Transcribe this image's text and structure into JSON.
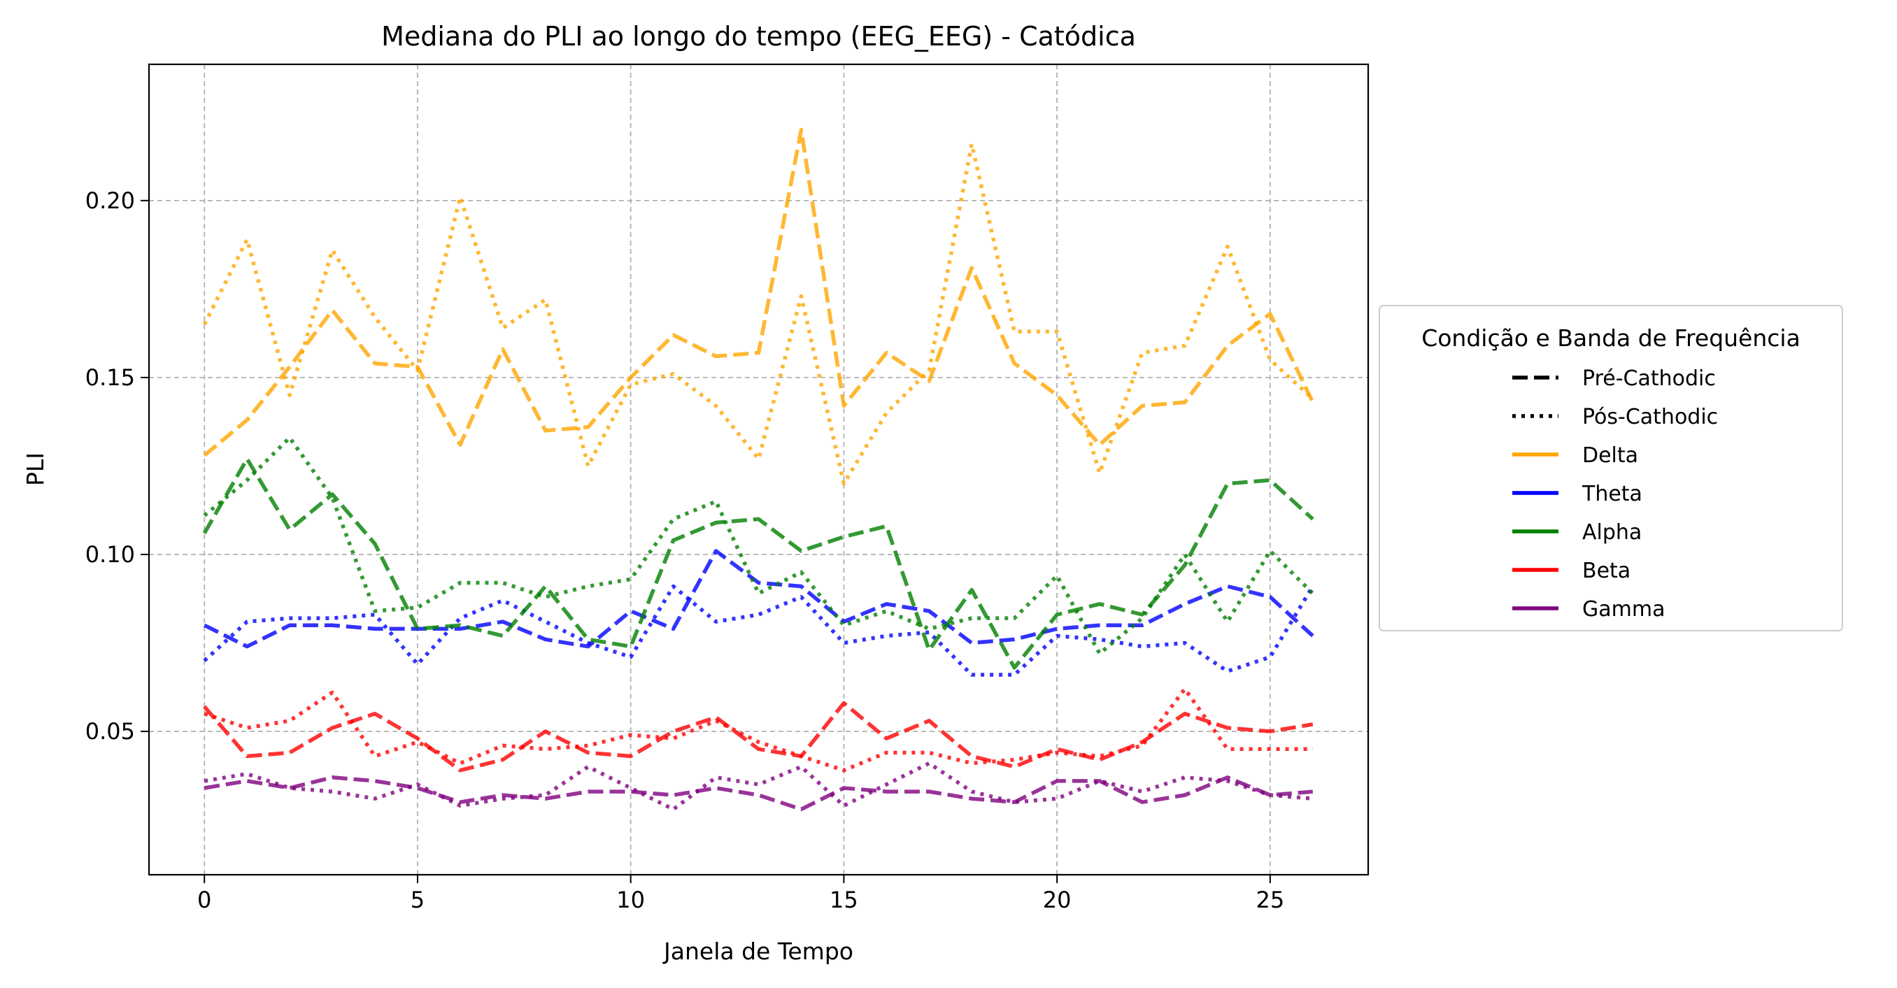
{
  "chart_data": {
    "type": "line",
    "title": "Mediana do PLI ao longo do tempo (EEG_EEG) - Catódica",
    "xlabel": "Janela de Tempo",
    "ylabel": "PLI",
    "xlim": [
      -1.3,
      27.3
    ],
    "ylim": [
      0.0095,
      0.2385
    ],
    "x_ticks": [
      0,
      5,
      10,
      15,
      20,
      25
    ],
    "x_tick_labels": [
      "0",
      "5",
      "10",
      "15",
      "20",
      "25"
    ],
    "y_ticks": [
      0.05,
      0.1,
      0.15,
      0.2
    ],
    "y_tick_labels": [
      "0.05",
      "0.10",
      "0.15",
      "0.20"
    ],
    "grid": true,
    "legend_placement": "outside-right",
    "legend": {
      "title": "Condição e Banda de Frequência",
      "entries": [
        {
          "label": "Pré-Cathodic",
          "color": "#000000",
          "style": "dashed"
        },
        {
          "label": "Pós-Cathodic",
          "color": "#000000",
          "style": "dotted"
        },
        {
          "label": "Delta",
          "color": "#ffa500",
          "style": "solid"
        },
        {
          "label": "Theta",
          "color": "#0000ff",
          "style": "solid"
        },
        {
          "label": "Alpha",
          "color": "#008000",
          "style": "solid"
        },
        {
          "label": "Beta",
          "color": "#ff0000",
          "style": "solid"
        },
        {
          "label": "Gamma",
          "color": "#800080",
          "style": "solid"
        }
      ]
    },
    "x": [
      0,
      1,
      2,
      3,
      4,
      5,
      6,
      7,
      8,
      9,
      10,
      11,
      12,
      13,
      14,
      15,
      16,
      17,
      18,
      19,
      20,
      21,
      22,
      23,
      24,
      25,
      26
    ],
    "series": [
      {
        "band": "Delta",
        "condition": "Pré-Cathodic",
        "color": "#ffa500",
        "style": "dashed",
        "values": [
          0.128,
          0.138,
          0.153,
          0.169,
          0.154,
          0.153,
          0.131,
          0.158,
          0.135,
          0.136,
          0.15,
          0.162,
          0.156,
          0.157,
          0.22,
          0.142,
          0.157,
          0.149,
          0.181,
          0.154,
          0.145,
          0.131,
          0.142,
          0.143,
          0.159,
          0.168,
          0.143
        ]
      },
      {
        "band": "Delta",
        "condition": "Pós-Cathodic",
        "color": "#ffa500",
        "style": "dotted",
        "values": [
          0.165,
          0.189,
          0.145,
          0.186,
          0.167,
          0.152,
          0.201,
          0.164,
          0.172,
          0.125,
          0.148,
          0.151,
          0.142,
          0.127,
          0.173,
          0.12,
          0.14,
          0.152,
          0.216,
          0.163,
          0.163,
          0.123,
          0.157,
          0.159,
          0.187,
          0.155,
          0.144
        ]
      },
      {
        "band": "Theta",
        "condition": "Pré-Cathodic",
        "color": "#0000ff",
        "style": "dashed",
        "values": [
          0.08,
          0.074,
          0.08,
          0.08,
          0.079,
          0.079,
          0.079,
          0.081,
          0.076,
          0.074,
          0.084,
          0.079,
          0.101,
          0.092,
          0.091,
          0.081,
          0.086,
          0.084,
          0.075,
          0.076,
          0.079,
          0.08,
          0.08,
          0.086,
          0.091,
          0.088,
          0.077
        ]
      },
      {
        "band": "Theta",
        "condition": "Pós-Cathodic",
        "color": "#0000ff",
        "style": "dotted",
        "values": [
          0.07,
          0.081,
          0.082,
          0.082,
          0.083,
          0.069,
          0.082,
          0.087,
          0.081,
          0.075,
          0.071,
          0.091,
          0.081,
          0.083,
          0.088,
          0.075,
          0.077,
          0.078,
          0.066,
          0.066,
          0.077,
          0.076,
          0.074,
          0.075,
          0.067,
          0.071,
          0.091
        ]
      },
      {
        "band": "Alpha",
        "condition": "Pré-Cathodic",
        "color": "#008000",
        "style": "dashed",
        "values": [
          0.106,
          0.127,
          0.107,
          0.117,
          0.103,
          0.079,
          0.08,
          0.077,
          0.091,
          0.076,
          0.074,
          0.104,
          0.109,
          0.11,
          0.101,
          0.105,
          0.108,
          0.073,
          0.09,
          0.068,
          0.083,
          0.086,
          0.083,
          0.097,
          0.12,
          0.121,
          0.11
        ]
      },
      {
        "band": "Alpha",
        "condition": "Pós-Cathodic",
        "color": "#008000",
        "style": "dotted",
        "values": [
          0.111,
          0.121,
          0.133,
          0.116,
          0.084,
          0.085,
          0.092,
          0.092,
          0.088,
          0.091,
          0.093,
          0.11,
          0.115,
          0.089,
          0.095,
          0.08,
          0.084,
          0.079,
          0.082,
          0.082,
          0.094,
          0.072,
          0.082,
          0.1,
          0.081,
          0.101,
          0.089
        ]
      },
      {
        "band": "Beta",
        "condition": "Pré-Cathodic",
        "color": "#ff0000",
        "style": "dashed",
        "values": [
          0.057,
          0.043,
          0.044,
          0.051,
          0.055,
          0.048,
          0.039,
          0.042,
          0.05,
          0.044,
          0.043,
          0.05,
          0.054,
          0.045,
          0.043,
          0.058,
          0.048,
          0.053,
          0.043,
          0.04,
          0.045,
          0.042,
          0.047,
          0.055,
          0.051,
          0.05,
          0.052
        ]
      },
      {
        "band": "Beta",
        "condition": "Pós-Cathodic",
        "color": "#ff0000",
        "style": "dotted",
        "values": [
          0.055,
          0.051,
          0.053,
          0.061,
          0.043,
          0.047,
          0.041,
          0.046,
          0.045,
          0.046,
          0.049,
          0.048,
          0.053,
          0.047,
          0.043,
          0.039,
          0.044,
          0.044,
          0.041,
          0.042,
          0.044,
          0.043,
          0.046,
          0.062,
          0.045,
          0.045,
          0.045
        ]
      },
      {
        "band": "Gamma",
        "condition": "Pré-Cathodic",
        "color": "#800080",
        "style": "dashed",
        "values": [
          0.034,
          0.036,
          0.034,
          0.037,
          0.036,
          0.034,
          0.03,
          0.032,
          0.031,
          0.033,
          0.033,
          0.032,
          0.034,
          0.032,
          0.028,
          0.034,
          0.033,
          0.033,
          0.031,
          0.03,
          0.036,
          0.036,
          0.03,
          0.032,
          0.037,
          0.032,
          0.033
        ]
      },
      {
        "band": "Gamma",
        "condition": "Pós-Cathodic",
        "color": "#800080",
        "style": "dotted",
        "values": [
          0.036,
          0.038,
          0.034,
          0.033,
          0.031,
          0.035,
          0.029,
          0.031,
          0.032,
          0.04,
          0.034,
          0.028,
          0.037,
          0.035,
          0.04,
          0.029,
          0.035,
          0.041,
          0.033,
          0.03,
          0.031,
          0.036,
          0.033,
          0.037,
          0.036,
          0.032,
          0.031
        ]
      }
    ]
  }
}
